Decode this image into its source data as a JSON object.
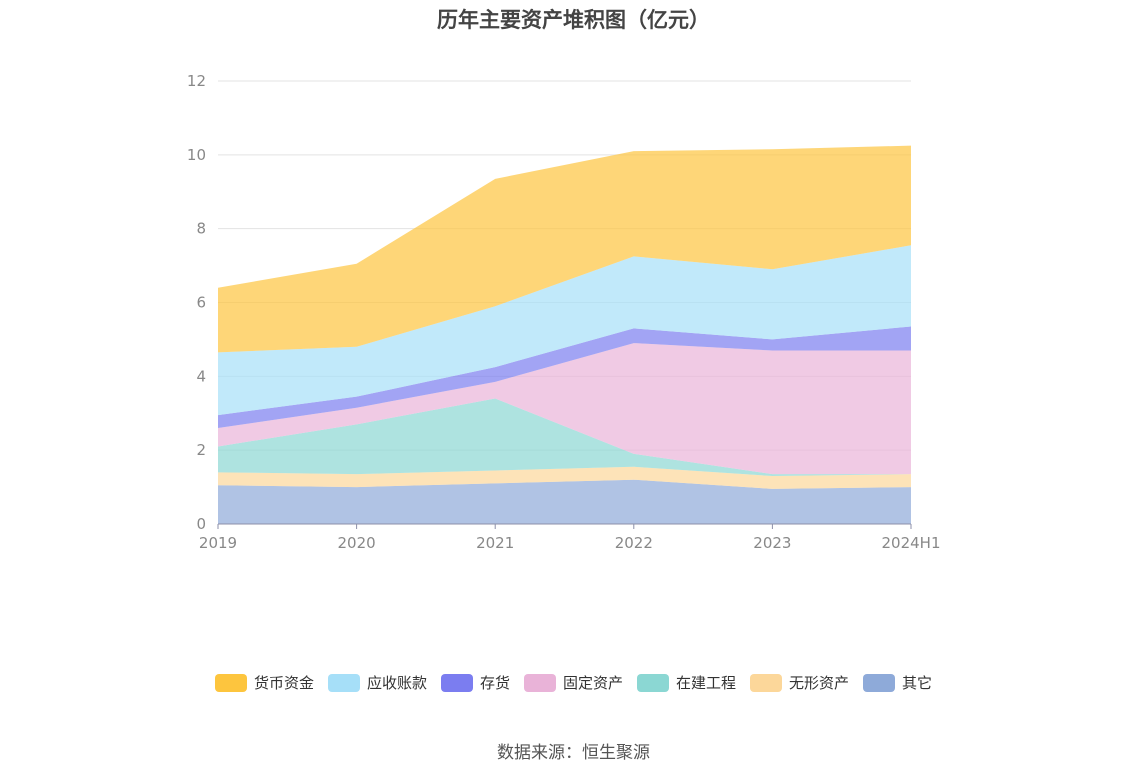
{
  "page": {
    "source_text": "数据来源：恒生聚源"
  },
  "chart_data": {
    "type": "area",
    "stacked": true,
    "title": "历年主要资产堆积图（亿元）",
    "categories": [
      "2019",
      "2020",
      "2021",
      "2022",
      "2023",
      "2024H1"
    ],
    "ylim": [
      0,
      12
    ],
    "yticks": [
      0,
      2,
      4,
      6,
      8,
      10,
      12
    ],
    "grid": true,
    "legend_position": "bottom",
    "series": [
      {
        "name": "其它",
        "color": "#8eaad9",
        "values": [
          1.05,
          1.0,
          1.1,
          1.2,
          0.95,
          1.0
        ]
      },
      {
        "name": "无形资产",
        "color": "#fcd79a",
        "values": [
          0.35,
          0.35,
          0.35,
          0.35,
          0.35,
          0.35
        ]
      },
      {
        "name": "在建工程",
        "color": "#8bd7d3",
        "values": [
          0.7,
          1.35,
          1.95,
          0.35,
          0.05,
          0.0
        ]
      },
      {
        "name": "固定资产",
        "color": "#e9b3d8",
        "values": [
          0.5,
          0.45,
          0.45,
          3.0,
          3.35,
          3.35
        ]
      },
      {
        "name": "存货",
        "color": "#7b7df0",
        "values": [
          0.35,
          0.3,
          0.4,
          0.4,
          0.3,
          0.65
        ]
      },
      {
        "name": "应收账款",
        "color": "#a6dff8",
        "values": [
          1.7,
          1.35,
          1.65,
          1.95,
          1.9,
          2.2
        ]
      },
      {
        "name": "货币资金",
        "color": "#fdc53e",
        "values": [
          1.75,
          2.25,
          3.45,
          2.85,
          3.25,
          2.7
        ]
      }
    ]
  }
}
